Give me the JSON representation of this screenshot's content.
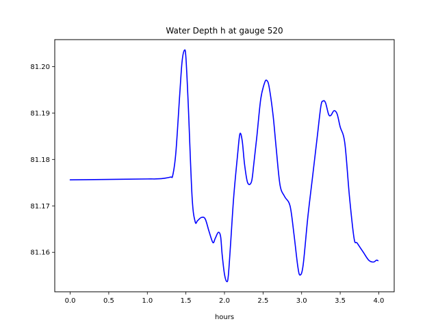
{
  "chart_data": {
    "type": "line",
    "title": "Water Depth h at gauge 520",
    "xlabel": "hours",
    "ylabel": "",
    "xlim": [
      -0.2,
      4.2
    ],
    "ylim": [
      81.1515,
      81.2058
    ],
    "xticks": [
      0.0,
      0.5,
      1.0,
      1.5,
      2.0,
      2.5,
      3.0,
      3.5,
      4.0
    ],
    "xtick_labels": [
      "0.0",
      "0.5",
      "1.0",
      "1.5",
      "2.0",
      "2.5",
      "3.0",
      "3.5",
      "4.0"
    ],
    "yticks": [
      81.16,
      81.17,
      81.18,
      81.19,
      81.2
    ],
    "ytick_labels": [
      "81.16",
      "81.17",
      "81.18",
      "81.19",
      "81.20"
    ],
    "grid": false,
    "legend": "none",
    "series": [
      {
        "color": "#0000ff",
        "x": [
          0.0,
          0.5,
          1.0,
          1.1,
          1.2,
          1.3,
          1.33,
          1.37,
          1.42,
          1.45,
          1.48,
          1.5,
          1.53,
          1.58,
          1.62,
          1.65,
          1.7,
          1.75,
          1.8,
          1.85,
          1.88,
          1.92,
          1.95,
          1.97,
          2.0,
          2.03,
          2.05,
          2.08,
          2.12,
          2.17,
          2.2,
          2.23,
          2.26,
          2.3,
          2.35,
          2.38,
          2.42,
          2.47,
          2.52,
          2.55,
          2.58,
          2.63,
          2.67,
          2.72,
          2.78,
          2.85,
          2.9,
          2.95,
          2.98,
          3.02,
          3.08,
          3.14,
          3.2,
          3.25,
          3.28,
          3.31,
          3.35,
          3.38,
          3.42,
          3.46,
          3.5,
          3.56,
          3.62,
          3.68,
          3.72,
          3.8,
          3.87,
          3.93,
          3.97,
          3.99
        ],
        "y": [
          81.1756,
          81.1757,
          81.1758,
          81.1758,
          81.1759,
          81.1762,
          81.1766,
          81.1815,
          81.194,
          81.201,
          81.2035,
          81.202,
          81.192,
          81.172,
          81.1666,
          81.1668,
          81.1675,
          81.1672,
          81.1645,
          81.1621,
          81.163,
          81.1643,
          81.1634,
          81.1595,
          81.1553,
          81.1537,
          81.155,
          81.162,
          81.172,
          81.181,
          81.1855,
          81.184,
          81.179,
          81.175,
          81.1752,
          81.179,
          81.185,
          81.193,
          81.1965,
          81.197,
          81.1955,
          81.1895,
          81.1825,
          81.1745,
          81.172,
          81.17,
          81.164,
          81.157,
          81.1551,
          81.1573,
          81.1675,
          81.176,
          81.1845,
          81.1915,
          81.1926,
          81.1922,
          81.1897,
          81.1895,
          81.1905,
          81.1898,
          81.187,
          81.1835,
          81.172,
          81.163,
          81.162,
          81.16,
          81.1583,
          81.1579,
          81.1583,
          81.1582
        ]
      }
    ]
  }
}
